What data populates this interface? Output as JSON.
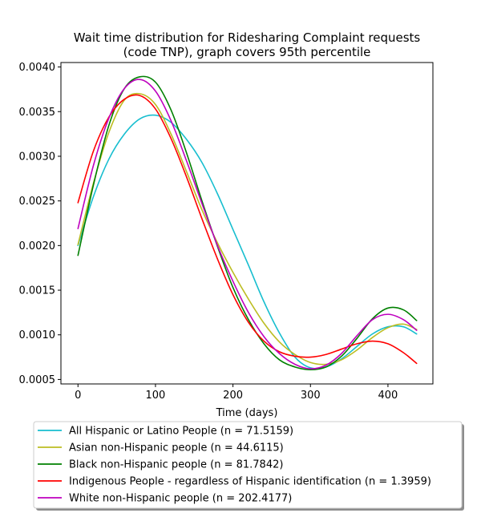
{
  "chart_data": {
    "type": "line",
    "title_line1": "Wait time distribution  for Ridesharing Complaint  requests",
    "title_line2": "(code TNP), graph covers 95th percentile",
    "xlabel": "Time (days)",
    "ylabel": "",
    "xlim": [
      -22,
      458
    ],
    "ylim": [
      0.00045,
      0.00405
    ],
    "x_ticks": [
      0,
      100,
      200,
      300,
      400
    ],
    "x_tick_labels": [
      "0",
      "100",
      "200",
      "300",
      "400"
    ],
    "y_ticks": [
      0.0005,
      0.001,
      0.0015,
      0.002,
      0.0025,
      0.003,
      0.0035,
      0.004
    ],
    "y_tick_labels": [
      "0.0005",
      "0.0010",
      "0.0015",
      "0.0020",
      "0.0025",
      "0.0030",
      "0.0035",
      "0.0040"
    ],
    "grid": false,
    "legend_placement": "below",
    "x": [
      0,
      20,
      40,
      60,
      80,
      100,
      120,
      140,
      160,
      180,
      200,
      220,
      240,
      260,
      280,
      300,
      320,
      340,
      360,
      380,
      400,
      420,
      437
    ],
    "series": [
      {
        "name": "All Hispanic or Latino People (n = 71.5159)",
        "color": "#17becf",
        "values": [
          0.002,
          0.00255,
          0.00297,
          0.00325,
          0.00342,
          0.00346,
          0.00338,
          0.00319,
          0.00293,
          0.00258,
          0.00218,
          0.00178,
          0.00137,
          0.00102,
          0.00075,
          0.00063,
          0.00064,
          0.00073,
          0.00087,
          0.00101,
          0.00109,
          0.00109,
          0.00101
        ]
      },
      {
        "name": "Asian non-Hispanic people (n = 44.6115)",
        "color": "#bcbd22",
        "values": [
          0.00201,
          0.0027,
          0.00327,
          0.00363,
          0.0037,
          0.00358,
          0.00325,
          0.00283,
          0.0024,
          0.00203,
          0.0017,
          0.0014,
          0.00113,
          0.00092,
          0.00078,
          0.00069,
          0.00067,
          0.00072,
          0.00083,
          0.00097,
          0.00108,
          0.00112,
          0.00106
        ]
      },
      {
        "name": "Black non-Hispanic people (n = 81.7842)",
        "color": "#008000",
        "values": [
          0.00189,
          0.00268,
          0.00335,
          0.00376,
          0.00389,
          0.00383,
          0.00352,
          0.00304,
          0.0025,
          0.00199,
          0.00153,
          0.00117,
          0.0009,
          0.00072,
          0.00064,
          0.00061,
          0.00064,
          0.00076,
          0.00096,
          0.00118,
          0.0013,
          0.00128,
          0.00116
        ]
      },
      {
        "name": "Indigenous People - regardless of Hispanic identification (n = 1.3959)",
        "color": "#ff0000",
        "values": [
          0.00248,
          0.00306,
          0.00344,
          0.00364,
          0.00368,
          0.00353,
          0.0032,
          0.00277,
          0.0023,
          0.00185,
          0.00145,
          0.00114,
          0.00093,
          0.00081,
          0.00076,
          0.00075,
          0.00078,
          0.00084,
          0.0009,
          0.00093,
          0.0009,
          0.0008,
          0.00068
        ]
      },
      {
        "name": "White non-Hispanic people (n = 202.4177)",
        "color": "#bf00bf",
        "values": [
          0.00219,
          0.0029,
          0.00343,
          0.00376,
          0.00386,
          0.00373,
          0.0034,
          0.00295,
          0.00247,
          0.002,
          0.0016,
          0.00125,
          0.00098,
          0.00079,
          0.00067,
          0.00062,
          0.00066,
          0.00079,
          0.00099,
          0.00117,
          0.00123,
          0.00117,
          0.00105
        ]
      }
    ]
  }
}
